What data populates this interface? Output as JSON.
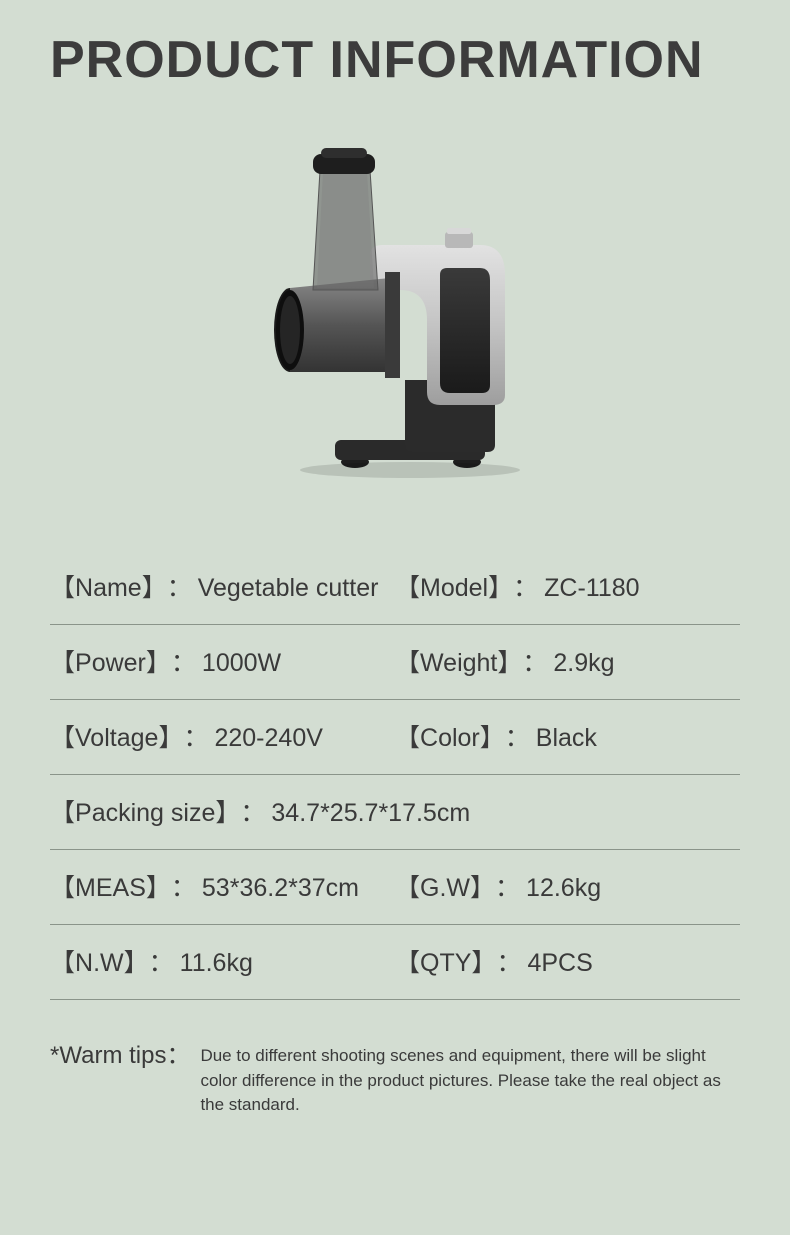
{
  "title": "PRODUCT INFORMATION",
  "background_color": "#d3ddd2",
  "text_color": "#3a3a3a",
  "divider_color": "#8a948a",
  "title_fontsize": 52,
  "spec_fontsize": 25,
  "tips_label_fontsize": 24,
  "tips_text_fontsize": 17,
  "product_image": {
    "description": "vegetable-cutter-appliance",
    "body_color": "#2b2b2b",
    "metal_color": "#c8c8c8",
    "tube_color": "#6a6a6a"
  },
  "specs": [
    {
      "cells": [
        {
          "label": "Name",
          "value": "Vegetable cutter"
        },
        {
          "label": "Model",
          "value": "ZC-1180"
        }
      ]
    },
    {
      "cells": [
        {
          "label": "Power",
          "value": " 1000W"
        },
        {
          "label": "Weight",
          "value": " 2.9kg"
        }
      ]
    },
    {
      "cells": [
        {
          "label": "Voltage",
          "value": " 220-240V"
        },
        {
          "label": "Color",
          "value": " Black"
        }
      ]
    },
    {
      "cells": [
        {
          "label": "Packing size",
          "value": " 34.7*25.7*17.5cm",
          "full": true
        }
      ]
    },
    {
      "cells": [
        {
          "label": "MEAS",
          "value": " 53*36.2*37cm"
        },
        {
          "label": "G.W",
          "value": " 12.6kg"
        }
      ]
    },
    {
      "cells": [
        {
          "label": "N.W",
          "value": " 11.6kg"
        },
        {
          "label": "QTY",
          "value": " 4PCS"
        }
      ]
    }
  ],
  "tips": {
    "label": "*Warm tips：",
    "text": "Due to different shooting scenes and equipment, there will be slight color difference in the product pictures. Please take the real object as the standard."
  }
}
